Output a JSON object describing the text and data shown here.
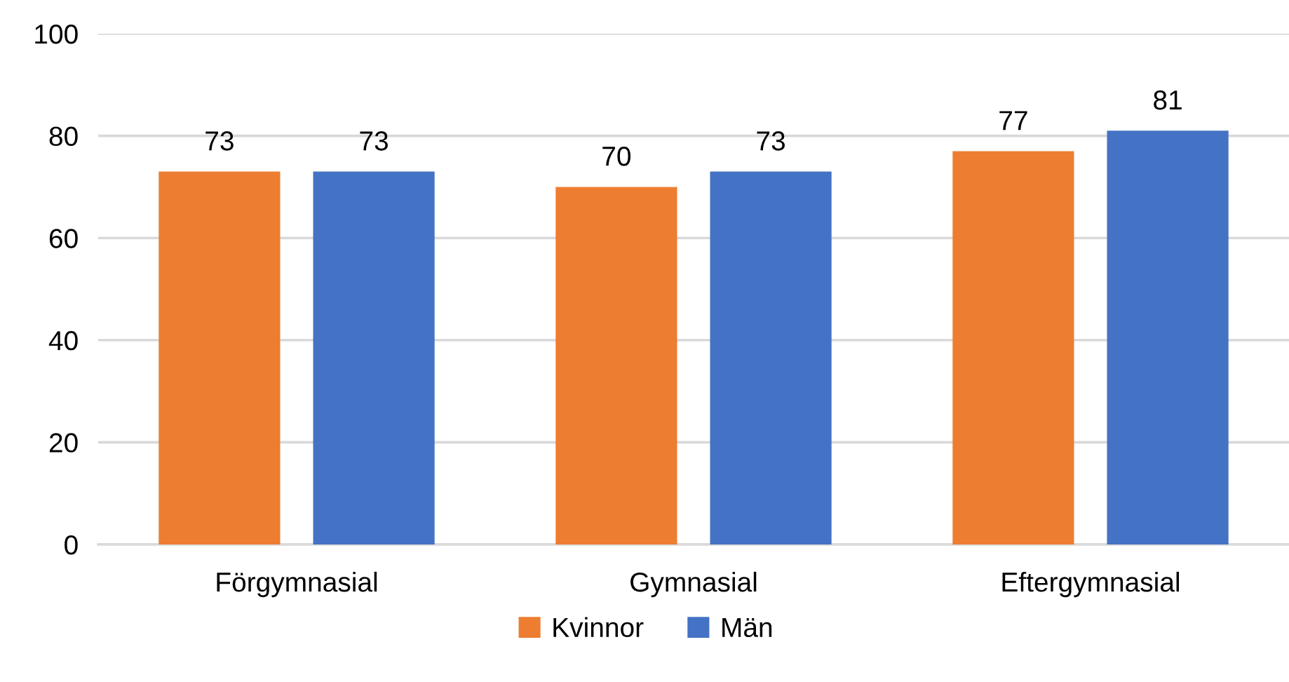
{
  "chart_data": {
    "type": "bar",
    "categories": [
      "Förgymnasial",
      "Gymnasial",
      "Eftergymnasial"
    ],
    "series": [
      {
        "name": "Kvinnor",
        "color": "#ed7d31",
        "values": [
          73,
          70,
          77
        ]
      },
      {
        "name": "Män",
        "color": "#4472c4",
        "values": [
          73,
          73,
          81
        ]
      }
    ],
    "ylim": [
      0,
      100
    ],
    "yticks": [
      0,
      20,
      40,
      60,
      80,
      100
    ],
    "grid": "y",
    "legend": "bottom",
    "data_labels": true
  }
}
